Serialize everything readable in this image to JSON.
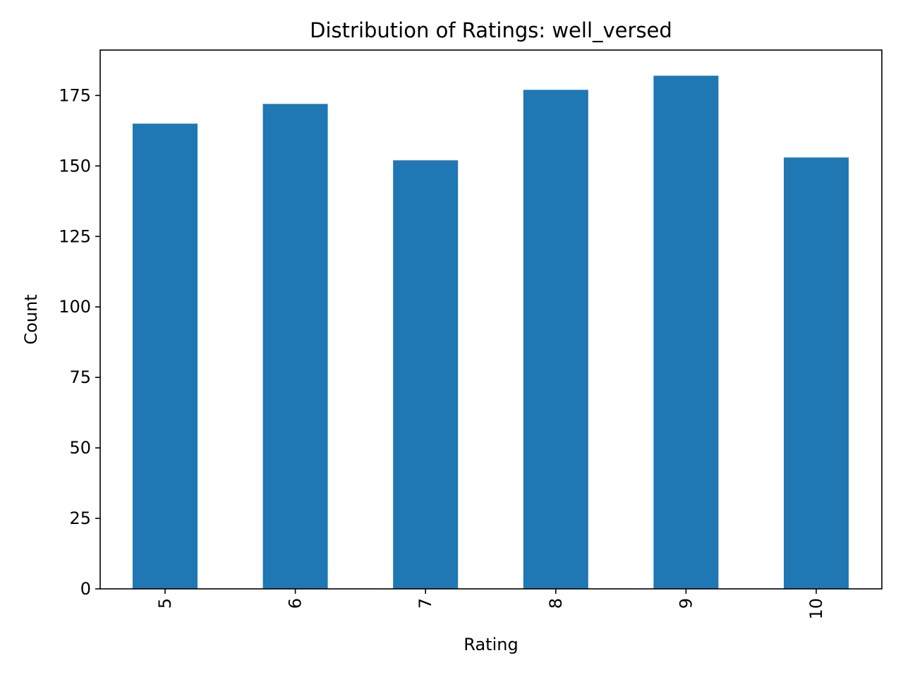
{
  "chart_data": {
    "type": "bar",
    "title": "Distribution of Ratings: well_versed",
    "xlabel": "Rating",
    "ylabel": "Count",
    "categories": [
      "5",
      "6",
      "7",
      "8",
      "9",
      "10"
    ],
    "values": [
      165,
      172,
      152,
      177,
      182,
      153
    ],
    "ylim": [
      0,
      191.1
    ],
    "yticks": [
      0,
      25,
      50,
      75,
      100,
      125,
      150,
      175
    ],
    "ytick_labels": [
      "0",
      "25",
      "50",
      "75",
      "100",
      "125",
      "150",
      "175"
    ],
    "xtick_rotation": "vertical",
    "bar_color": "#1f77b4",
    "grid": false,
    "legend": "none"
  }
}
